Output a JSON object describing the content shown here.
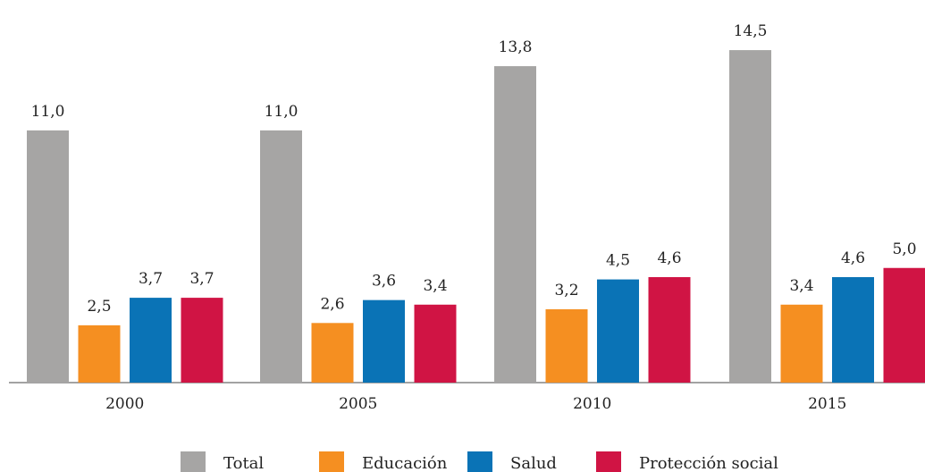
{
  "chart_data": {
    "type": "bar",
    "categories": [
      "2000",
      "2005",
      "2010",
      "2015"
    ],
    "series": [
      {
        "name": "Total",
        "color": "#a6a5a4",
        "values": [
          11.0,
          11.0,
          13.8,
          14.5
        ],
        "labels": [
          "11,0",
          "11,0",
          "13,8",
          "14,5"
        ]
      },
      {
        "name": "Educación",
        "color": "#f58f21",
        "values": [
          2.5,
          2.6,
          3.2,
          3.4
        ],
        "labels": [
          "2,5",
          "2,6",
          "3,2",
          "3,4"
        ]
      },
      {
        "name": "Salud",
        "color": "#0a73b6",
        "values": [
          3.7,
          3.6,
          4.5,
          4.6
        ],
        "labels": [
          "3,7",
          "3,6",
          "4,5",
          "4,6"
        ]
      },
      {
        "name": "Protección social",
        "color": "#d01444",
        "values": [
          3.7,
          3.4,
          4.6,
          5.0
        ],
        "labels": [
          "3,7",
          "3,4",
          "4,6",
          "5,0"
        ]
      }
    ],
    "title": "",
    "xlabel": "",
    "ylabel": "",
    "ylim": [
      0,
      15
    ],
    "grid": false,
    "legend": "bottom"
  }
}
